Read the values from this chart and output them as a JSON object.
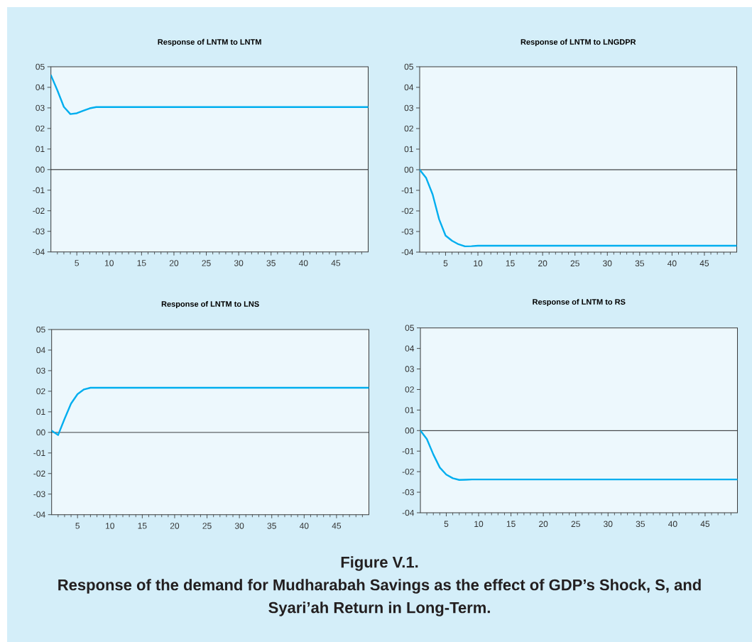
{
  "chart_data": [
    {
      "type": "line",
      "title": "Response of LNTM to LNTM",
      "x": [
        1,
        2,
        3,
        4,
        5,
        6,
        7,
        8,
        9,
        10,
        11,
        12,
        13,
        14,
        15,
        16,
        17,
        18,
        19,
        20,
        21,
        22,
        23,
        24,
        25,
        26,
        27,
        28,
        29,
        30,
        31,
        32,
        33,
        34,
        35,
        36,
        37,
        38,
        39,
        40,
        41,
        42,
        43,
        44,
        45,
        46,
        47,
        48,
        49,
        50
      ],
      "series": [
        {
          "color": "#00aeef",
          "values": [
            4.59,
            3.85,
            3.05,
            2.7,
            2.74,
            2.86,
            2.98,
            3.04,
            3.04,
            3.04,
            3.04,
            3.04,
            3.04,
            3.04,
            3.04,
            3.04,
            3.04,
            3.04,
            3.04,
            3.04,
            3.04,
            3.04,
            3.04,
            3.04,
            3.04,
            3.04,
            3.04,
            3.04,
            3.04,
            3.04,
            3.04,
            3.04,
            3.04,
            3.04,
            3.04,
            3.04,
            3.04,
            3.04,
            3.04,
            3.04,
            3.04,
            3.04,
            3.04,
            3.04,
            3.04,
            3.04,
            3.04,
            3.04,
            3.04,
            3.04
          ]
        }
      ],
      "xlim": [
        1,
        50
      ],
      "xticks": [
        {
          "value": 2,
          "label": null
        },
        {
          "value": 3,
          "label": null
        },
        {
          "value": 4,
          "label": null
        },
        5,
        {
          "value": 6,
          "label": null
        },
        {
          "value": 7,
          "label": null
        },
        {
          "value": 8,
          "label": null
        },
        {
          "value": 9,
          "label": null
        },
        10,
        {
          "value": 11,
          "label": null
        },
        {
          "value": 12,
          "label": null
        },
        {
          "value": 13,
          "label": null
        },
        {
          "value": 14,
          "label": null
        },
        15,
        {
          "value": 16,
          "label": null
        },
        {
          "value": 17,
          "label": null
        },
        {
          "value": 18,
          "label": null
        },
        {
          "value": 19,
          "label": null
        },
        20,
        {
          "value": 21,
          "label": null
        },
        {
          "value": 22,
          "label": null
        },
        {
          "value": 23,
          "label": null
        },
        {
          "value": 24,
          "label": null
        },
        25,
        {
          "value": 26,
          "label": null
        },
        {
          "value": 27,
          "label": null
        },
        {
          "value": 28,
          "label": null
        },
        {
          "value": 29,
          "label": null
        },
        30,
        {
          "value": 31,
          "label": null
        },
        {
          "value": 32,
          "label": null
        },
        {
          "value": 33,
          "label": null
        },
        {
          "value": 34,
          "label": null
        },
        35,
        {
          "value": 36,
          "label": null
        },
        {
          "value": 37,
          "label": null
        },
        {
          "value": 38,
          "label": null
        },
        {
          "value": 39,
          "label": null
        },
        40,
        {
          "value": 41,
          "label": null
        },
        {
          "value": 42,
          "label": null
        },
        {
          "value": 43,
          "label": null
        },
        {
          "value": 44,
          "label": null
        },
        45,
        {
          "value": 46,
          "label": null
        },
        {
          "value": 47,
          "label": null
        },
        {
          "value": 48,
          "label": null
        },
        {
          "value": 49,
          "label": null
        }
      ],
      "ylim": [
        -4,
        5
      ],
      "yticks": [
        {
          "value": -4,
          "label": "-04"
        },
        {
          "value": -3,
          "label": "-03"
        },
        {
          "value": -2,
          "label": "-02"
        },
        {
          "value": -1,
          "label": "-01"
        },
        {
          "value": 0,
          "label": "00"
        },
        {
          "value": 1,
          "label": "01"
        },
        {
          "value": 2,
          "label": "02"
        },
        {
          "value": 3,
          "label": "03"
        },
        {
          "value": 4,
          "label": "04"
        },
        {
          "value": 5,
          "label": "05"
        }
      ],
      "ref_lines": [
        {
          "axis": "y",
          "value": 0,
          "color": "#000000"
        }
      ]
    },
    {
      "type": "line",
      "title": "Response of LNTM to LNGDPR",
      "x": [
        1,
        2,
        3,
        4,
        5,
        6,
        7,
        8,
        9,
        10,
        11,
        12,
        13,
        14,
        15,
        16,
        17,
        18,
        19,
        20,
        21,
        22,
        23,
        24,
        25,
        26,
        27,
        28,
        29,
        30,
        31,
        32,
        33,
        34,
        35,
        36,
        37,
        38,
        39,
        40,
        41,
        42,
        43,
        44,
        45,
        46,
        47,
        48,
        49,
        50
      ],
      "series": [
        {
          "color": "#00aeef",
          "values": [
            0,
            -0.4,
            -1.2,
            -2.4,
            -3.2,
            -3.45,
            -3.62,
            -3.72,
            -3.71,
            -3.69,
            -3.69,
            -3.69,
            -3.69,
            -3.69,
            -3.69,
            -3.69,
            -3.69,
            -3.69,
            -3.69,
            -3.69,
            -3.69,
            -3.69,
            -3.69,
            -3.69,
            -3.69,
            -3.69,
            -3.69,
            -3.69,
            -3.69,
            -3.69,
            -3.69,
            -3.69,
            -3.69,
            -3.69,
            -3.69,
            -3.69,
            -3.69,
            -3.69,
            -3.69,
            -3.69,
            -3.69,
            -3.69,
            -3.69,
            -3.69,
            -3.69,
            -3.69,
            -3.69,
            -3.69,
            -3.69,
            -3.69
          ]
        }
      ],
      "xlim": [
        1,
        50
      ],
      "xticks": [
        {
          "value": 2,
          "label": null
        },
        {
          "value": 3,
          "label": null
        },
        {
          "value": 4,
          "label": null
        },
        5,
        {
          "value": 6,
          "label": null
        },
        {
          "value": 7,
          "label": null
        },
        {
          "value": 8,
          "label": null
        },
        {
          "value": 9,
          "label": null
        },
        10,
        {
          "value": 11,
          "label": null
        },
        {
          "value": 12,
          "label": null
        },
        {
          "value": 13,
          "label": null
        },
        {
          "value": 14,
          "label": null
        },
        15,
        {
          "value": 16,
          "label": null
        },
        {
          "value": 17,
          "label": null
        },
        {
          "value": 18,
          "label": null
        },
        {
          "value": 19,
          "label": null
        },
        20,
        {
          "value": 21,
          "label": null
        },
        {
          "value": 22,
          "label": null
        },
        {
          "value": 23,
          "label": null
        },
        {
          "value": 24,
          "label": null
        },
        25,
        {
          "value": 26,
          "label": null
        },
        {
          "value": 27,
          "label": null
        },
        {
          "value": 28,
          "label": null
        },
        {
          "value": 29,
          "label": null
        },
        30,
        {
          "value": 31,
          "label": null
        },
        {
          "value": 32,
          "label": null
        },
        {
          "value": 33,
          "label": null
        },
        {
          "value": 34,
          "label": null
        },
        35,
        {
          "value": 36,
          "label": null
        },
        {
          "value": 37,
          "label": null
        },
        {
          "value": 38,
          "label": null
        },
        {
          "value": 39,
          "label": null
        },
        40,
        {
          "value": 41,
          "label": null
        },
        {
          "value": 42,
          "label": null
        },
        {
          "value": 43,
          "label": null
        },
        {
          "value": 44,
          "label": null
        },
        45,
        {
          "value": 46,
          "label": null
        },
        {
          "value": 47,
          "label": null
        },
        {
          "value": 48,
          "label": null
        },
        {
          "value": 49,
          "label": null
        }
      ],
      "ylim": [
        -4,
        5
      ],
      "yticks": [
        {
          "value": -4,
          "label": "-04"
        },
        {
          "value": -3,
          "label": "-03"
        },
        {
          "value": -2,
          "label": "-02"
        },
        {
          "value": -1,
          "label": "-01"
        },
        {
          "value": 0,
          "label": "00"
        },
        {
          "value": 1,
          "label": "01"
        },
        {
          "value": 2,
          "label": "02"
        },
        {
          "value": 3,
          "label": "03"
        },
        {
          "value": 4,
          "label": "04"
        },
        {
          "value": 5,
          "label": "05"
        }
      ],
      "ref_lines": [
        {
          "axis": "y",
          "value": 0,
          "color": "#000000"
        }
      ]
    },
    {
      "type": "line",
      "title": "Response of LNTM to LNS",
      "x": [
        1,
        2,
        3,
        4,
        5,
        6,
        7,
        8,
        9,
        10,
        11,
        12,
        13,
        14,
        15,
        16,
        17,
        18,
        19,
        20,
        21,
        22,
        23,
        24,
        25,
        26,
        27,
        28,
        29,
        30,
        31,
        32,
        33,
        34,
        35,
        36,
        37,
        38,
        39,
        40,
        41,
        42,
        43,
        44,
        45,
        46,
        47,
        48,
        49,
        50
      ],
      "series": [
        {
          "color": "#00aeef",
          "values": [
            0.08,
            -0.13,
            0.66,
            1.4,
            1.86,
            2.09,
            2.17,
            2.17,
            2.17,
            2.17,
            2.17,
            2.17,
            2.17,
            2.17,
            2.17,
            2.17,
            2.17,
            2.17,
            2.17,
            2.17,
            2.17,
            2.17,
            2.17,
            2.17,
            2.17,
            2.17,
            2.17,
            2.17,
            2.17,
            2.17,
            2.17,
            2.17,
            2.17,
            2.17,
            2.17,
            2.17,
            2.17,
            2.17,
            2.17,
            2.17,
            2.17,
            2.17,
            2.17,
            2.17,
            2.17,
            2.17,
            2.17,
            2.17,
            2.17,
            2.17
          ]
        }
      ],
      "xlim": [
        1,
        50
      ],
      "xticks": [
        {
          "value": 2,
          "label": null
        },
        {
          "value": 3,
          "label": null
        },
        {
          "value": 4,
          "label": null
        },
        5,
        {
          "value": 6,
          "label": null
        },
        {
          "value": 7,
          "label": null
        },
        {
          "value": 8,
          "label": null
        },
        {
          "value": 9,
          "label": null
        },
        10,
        {
          "value": 11,
          "label": null
        },
        {
          "value": 12,
          "label": null
        },
        {
          "value": 13,
          "label": null
        },
        {
          "value": 14,
          "label": null
        },
        15,
        {
          "value": 16,
          "label": null
        },
        {
          "value": 17,
          "label": null
        },
        {
          "value": 18,
          "label": null
        },
        {
          "value": 19,
          "label": null
        },
        20,
        {
          "value": 21,
          "label": null
        },
        {
          "value": 22,
          "label": null
        },
        {
          "value": 23,
          "label": null
        },
        {
          "value": 24,
          "label": null
        },
        25,
        {
          "value": 26,
          "label": null
        },
        {
          "value": 27,
          "label": null
        },
        {
          "value": 28,
          "label": null
        },
        {
          "value": 29,
          "label": null
        },
        30,
        {
          "value": 31,
          "label": null
        },
        {
          "value": 32,
          "label": null
        },
        {
          "value": 33,
          "label": null
        },
        {
          "value": 34,
          "label": null
        },
        35,
        {
          "value": 36,
          "label": null
        },
        {
          "value": 37,
          "label": null
        },
        {
          "value": 38,
          "label": null
        },
        {
          "value": 39,
          "label": null
        },
        40,
        {
          "value": 41,
          "label": null
        },
        {
          "value": 42,
          "label": null
        },
        {
          "value": 43,
          "label": null
        },
        {
          "value": 44,
          "label": null
        },
        45,
        {
          "value": 46,
          "label": null
        },
        {
          "value": 47,
          "label": null
        },
        {
          "value": 48,
          "label": null
        },
        {
          "value": 49,
          "label": null
        }
      ],
      "ylim": [
        -4,
        5
      ],
      "yticks": [
        {
          "value": -4,
          "label": "-04"
        },
        {
          "value": -3,
          "label": "-03"
        },
        {
          "value": -2,
          "label": "-02"
        },
        {
          "value": -1,
          "label": "-01"
        },
        {
          "value": 0,
          "label": "00"
        },
        {
          "value": 1,
          "label": "01"
        },
        {
          "value": 2,
          "label": "02"
        },
        {
          "value": 3,
          "label": "03"
        },
        {
          "value": 4,
          "label": "04"
        },
        {
          "value": 5,
          "label": "05"
        }
      ],
      "ref_lines": [
        {
          "axis": "y",
          "value": 0,
          "color": "#000000"
        }
      ]
    },
    {
      "type": "line",
      "title": "Response of LNTM to RS",
      "x": [
        1,
        2,
        3,
        4,
        5,
        6,
        7,
        8,
        9,
        10,
        11,
        12,
        13,
        14,
        15,
        16,
        17,
        18,
        19,
        20,
        21,
        22,
        23,
        24,
        25,
        26,
        27,
        28,
        29,
        30,
        31,
        32,
        33,
        34,
        35,
        36,
        37,
        38,
        39,
        40,
        41,
        42,
        43,
        44,
        45,
        46,
        47,
        48,
        49,
        50
      ],
      "series": [
        {
          "color": "#00aeef",
          "values": [
            0,
            -0.41,
            -1.16,
            -1.8,
            -2.14,
            -2.32,
            -2.4,
            -2.39,
            -2.38,
            -2.38,
            -2.38,
            -2.38,
            -2.38,
            -2.38,
            -2.38,
            -2.38,
            -2.38,
            -2.38,
            -2.38,
            -2.38,
            -2.38,
            -2.38,
            -2.38,
            -2.38,
            -2.38,
            -2.38,
            -2.38,
            -2.38,
            -2.38,
            -2.38,
            -2.38,
            -2.38,
            -2.38,
            -2.38,
            -2.38,
            -2.38,
            -2.38,
            -2.38,
            -2.38,
            -2.38,
            -2.38,
            -2.38,
            -2.38,
            -2.38,
            -2.38,
            -2.38,
            -2.38,
            -2.38,
            -2.38,
            -2.38
          ]
        }
      ],
      "xlim": [
        1,
        50
      ],
      "xticks": [
        {
          "value": 2,
          "label": null
        },
        {
          "value": 3,
          "label": null
        },
        {
          "value": 4,
          "label": null
        },
        5,
        {
          "value": 6,
          "label": null
        },
        {
          "value": 7,
          "label": null
        },
        {
          "value": 8,
          "label": null
        },
        {
          "value": 9,
          "label": null
        },
        10,
        {
          "value": 11,
          "label": null
        },
        {
          "value": 12,
          "label": null
        },
        {
          "value": 13,
          "label": null
        },
        {
          "value": 14,
          "label": null
        },
        15,
        {
          "value": 16,
          "label": null
        },
        {
          "value": 17,
          "label": null
        },
        {
          "value": 18,
          "label": null
        },
        {
          "value": 19,
          "label": null
        },
        20,
        {
          "value": 21,
          "label": null
        },
        {
          "value": 22,
          "label": null
        },
        {
          "value": 23,
          "label": null
        },
        {
          "value": 24,
          "label": null
        },
        25,
        {
          "value": 26,
          "label": null
        },
        {
          "value": 27,
          "label": null
        },
        {
          "value": 28,
          "label": null
        },
        {
          "value": 29,
          "label": null
        },
        30,
        {
          "value": 31,
          "label": null
        },
        {
          "value": 32,
          "label": null
        },
        {
          "value": 33,
          "label": null
        },
        {
          "value": 34,
          "label": null
        },
        35,
        {
          "value": 36,
          "label": null
        },
        {
          "value": 37,
          "label": null
        },
        {
          "value": 38,
          "label": null
        },
        {
          "value": 39,
          "label": null
        },
        40,
        {
          "value": 41,
          "label": null
        },
        {
          "value": 42,
          "label": null
        },
        {
          "value": 43,
          "label": null
        },
        {
          "value": 44,
          "label": null
        },
        45,
        {
          "value": 46,
          "label": null
        },
        {
          "value": 47,
          "label": null
        },
        {
          "value": 48,
          "label": null
        },
        {
          "value": 49,
          "label": null
        }
      ],
      "ylim": [
        -4,
        5
      ],
      "yticks": [
        {
          "value": -4,
          "label": "-04"
        },
        {
          "value": -3,
          "label": "-03"
        },
        {
          "value": -2,
          "label": "-02"
        },
        {
          "value": -1,
          "label": "-01"
        },
        {
          "value": 0,
          "label": "00"
        },
        {
          "value": 1,
          "label": "01"
        },
        {
          "value": 2,
          "label": "02"
        },
        {
          "value": 3,
          "label": "03"
        },
        {
          "value": 4,
          "label": "04"
        },
        {
          "value": 5,
          "label": "05"
        }
      ],
      "ref_lines": [
        {
          "axis": "y",
          "value": 0,
          "color": "#000000"
        }
      ],
      "annotations": [
        "Figure V.1.",
        "Response of the demand for Mudharabah Savings as the effect of GDP’s Shock, S, and Syari’ah Return in Long-Term."
      ]
    }
  ]
}
